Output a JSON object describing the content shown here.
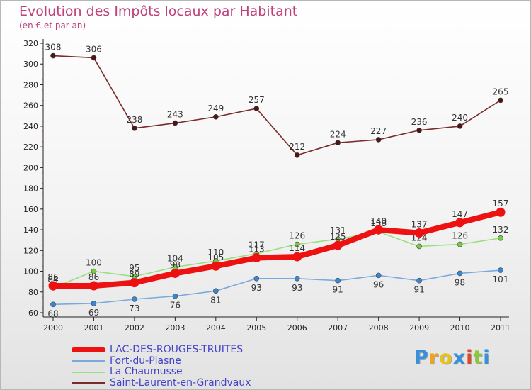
{
  "chart_data": {
    "type": "line",
    "title": "Evolution des Impôts locaux par Habitant",
    "subtitle": "(en € et par an)",
    "x": [
      "2000",
      "2001",
      "2002",
      "2003",
      "2004",
      "2005",
      "2006",
      "2007",
      "2008",
      "2009",
      "2010",
      "2011"
    ],
    "ylim": [
      60,
      320
    ],
    "yticks": [
      60,
      80,
      100,
      120,
      140,
      160,
      180,
      200,
      220,
      240,
      260,
      280,
      300,
      320
    ],
    "grid": false,
    "legend_position": "bottom-left",
    "series": [
      {
        "name": "Saint-Laurent-en-Grandvaux",
        "color": "#7a2b2b",
        "marker_color": "#4a1616",
        "values": [
          308,
          306,
          238,
          243,
          249,
          257,
          212,
          224,
          227,
          236,
          240,
          265
        ]
      },
      {
        "name": "La Chaumusse",
        "color": "#9be080",
        "marker_color": "#77cc44",
        "values": [
          84,
          100,
          95,
          104,
          110,
          117,
          126,
          131,
          138,
          124,
          126,
          132
        ]
      },
      {
        "name": "Fort-du-Plasne",
        "color": "#7aaadd",
        "marker_color": "#3a86cf",
        "values": [
          68,
          69,
          73,
          76,
          81,
          93,
          93,
          91,
          96,
          91,
          98,
          101
        ]
      },
      {
        "name": "LAC-DES-ROUGES-TRUITES",
        "color": "#ee1111",
        "marker_color": "#ee1111",
        "values": [
          86,
          86,
          89,
          98,
          105,
          113,
          114,
          125,
          140,
          137,
          147,
          157
        ]
      }
    ]
  },
  "legend": [
    {
      "name": "LAC-DES-ROUGES-TRUITES",
      "color": "#ee1111",
      "thickness": 7
    },
    {
      "name": "Fort-du-Plasne",
      "color": "#7aaadd",
      "thickness": 2
    },
    {
      "name": "La Chaumusse",
      "color": "#9be080",
      "thickness": 2
    },
    {
      "name": "Saint-Laurent-en-Grandvaux",
      "color": "#7a2b2b",
      "thickness": 2
    }
  ],
  "logo": {
    "letters": [
      "P",
      "r",
      "o",
      "x",
      "i",
      "t",
      "i"
    ],
    "colors": [
      "#3a8fd9",
      "#f2a21b",
      "#e8c21c",
      "#3a8fd9",
      "#e0482b",
      "#8cc63f",
      "#3a8fd9"
    ]
  }
}
